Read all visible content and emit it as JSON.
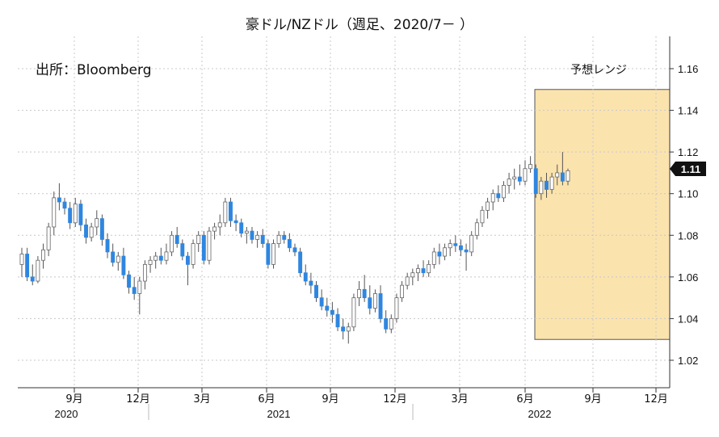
{
  "chart_data": {
    "type": "candlestick",
    "title": "豪ドル/NZドル（週足、2020/7－ ）",
    "source": "出所：Bloomberg",
    "forecast_label": "予想レンジ",
    "forecast_range": {
      "start": "2022-06",
      "end": "2022-12",
      "low": 1.03,
      "high": 1.15
    },
    "last_price_label": "1.11",
    "y_ticks": [
      "1.16",
      "1.14",
      "1.12",
      "1.10",
      "1.08",
      "1.06",
      "1.04",
      "1.02"
    ],
    "ylim": [
      1.005,
      1.18
    ],
    "x_month_labels": [
      "9月",
      "12月",
      "3月",
      "6月",
      "9月",
      "12月",
      "3月",
      "6月",
      "9月",
      "12月"
    ],
    "x_year_labels": [
      "2020",
      "2021",
      "2022"
    ],
    "grid": true,
    "colors": {
      "up": "#ffffff",
      "up_border": "#666666",
      "down": "#2f86e0",
      "down_border": "#2f86e0",
      "wick": "#555555",
      "forecast_fill": "#fbe3ad",
      "forecast_border": "#555555",
      "grid": "#c8c8c8"
    },
    "candles": [
      [
        1.066,
        1.074,
        1.06,
        1.071
      ],
      [
        1.071,
        1.074,
        1.058,
        1.06
      ],
      [
        1.06,
        1.066,
        1.056,
        1.058
      ],
      [
        1.058,
        1.07,
        1.057,
        1.068
      ],
      [
        1.068,
        1.076,
        1.064,
        1.073
      ],
      [
        1.073,
        1.086,
        1.07,
        1.084
      ],
      [
        1.084,
        1.101,
        1.08,
        1.098
      ],
      [
        1.098,
        1.105,
        1.092,
        1.096
      ],
      [
        1.096,
        1.098,
        1.09,
        1.093
      ],
      [
        1.093,
        1.096,
        1.083,
        1.086
      ],
      [
        1.086,
        1.098,
        1.084,
        1.095
      ],
      [
        1.095,
        1.097,
        1.082,
        1.085
      ],
      [
        1.085,
        1.088,
        1.076,
        1.079
      ],
      [
        1.079,
        1.086,
        1.077,
        1.084
      ],
      [
        1.084,
        1.092,
        1.08,
        1.088
      ],
      [
        1.088,
        1.09,
        1.075,
        1.078
      ],
      [
        1.078,
        1.081,
        1.069,
        1.072
      ],
      [
        1.072,
        1.076,
        1.065,
        1.067
      ],
      [
        1.067,
        1.072,
        1.063,
        1.07
      ],
      [
        1.07,
        1.074,
        1.059,
        1.061
      ],
      [
        1.061,
        1.063,
        1.052,
        1.055
      ],
      [
        1.055,
        1.06,
        1.049,
        1.052
      ],
      [
        1.052,
        1.06,
        1.042,
        1.058
      ],
      [
        1.058,
        1.068,
        1.054,
        1.066
      ],
      [
        1.066,
        1.07,
        1.062,
        1.068
      ],
      [
        1.068,
        1.072,
        1.064,
        1.07
      ],
      [
        1.07,
        1.074,
        1.066,
        1.068
      ],
      [
        1.068,
        1.076,
        1.066,
        1.072
      ],
      [
        1.072,
        1.082,
        1.07,
        1.08
      ],
      [
        1.08,
        1.084,
        1.074,
        1.076
      ],
      [
        1.076,
        1.078,
        1.068,
        1.07
      ],
      [
        1.07,
        1.072,
        1.056,
        1.066
      ],
      [
        1.066,
        1.078,
        1.064,
        1.076
      ],
      [
        1.076,
        1.082,
        1.072,
        1.08
      ],
      [
        1.08,
        1.082,
        1.066,
        1.068
      ],
      [
        1.068,
        1.084,
        1.066,
        1.082
      ],
      [
        1.082,
        1.086,
        1.078,
        1.084
      ],
      [
        1.084,
        1.09,
        1.08,
        1.086
      ],
      [
        1.086,
        1.098,
        1.084,
        1.096
      ],
      [
        1.096,
        1.098,
        1.084,
        1.087
      ],
      [
        1.087,
        1.09,
        1.082,
        1.086
      ],
      [
        1.086,
        1.088,
        1.079,
        1.081
      ],
      [
        1.081,
        1.084,
        1.076,
        1.082
      ],
      [
        1.082,
        1.084,
        1.076,
        1.078
      ],
      [
        1.078,
        1.082,
        1.074,
        1.08
      ],
      [
        1.08,
        1.083,
        1.074,
        1.076
      ],
      [
        1.076,
        1.078,
        1.064,
        1.066
      ],
      [
        1.066,
        1.078,
        1.064,
        1.076
      ],
      [
        1.076,
        1.082,
        1.074,
        1.08
      ],
      [
        1.08,
        1.082,
        1.076,
        1.078
      ],
      [
        1.078,
        1.081,
        1.072,
        1.074
      ],
      [
        1.074,
        1.076,
        1.07,
        1.072
      ],
      [
        1.072,
        1.074,
        1.06,
        1.062
      ],
      [
        1.062,
        1.066,
        1.056,
        1.058
      ],
      [
        1.058,
        1.062,
        1.052,
        1.056
      ],
      [
        1.056,
        1.058,
        1.048,
        1.05
      ],
      [
        1.05,
        1.054,
        1.044,
        1.046
      ],
      [
        1.046,
        1.05,
        1.041,
        1.044
      ],
      [
        1.044,
        1.048,
        1.038,
        1.042
      ],
      [
        1.042,
        1.045,
        1.034,
        1.036
      ],
      [
        1.036,
        1.04,
        1.03,
        1.034
      ],
      [
        1.034,
        1.038,
        1.028,
        1.036
      ],
      [
        1.036,
        1.052,
        1.034,
        1.05
      ],
      [
        1.05,
        1.058,
        1.046,
        1.054
      ],
      [
        1.054,
        1.061,
        1.048,
        1.05
      ],
      [
        1.05,
        1.056,
        1.042,
        1.045
      ],
      [
        1.045,
        1.054,
        1.043,
        1.052
      ],
      [
        1.052,
        1.056,
        1.038,
        1.04
      ],
      [
        1.04,
        1.044,
        1.033,
        1.035
      ],
      [
        1.035,
        1.042,
        1.033,
        1.04
      ],
      [
        1.04,
        1.052,
        1.038,
        1.05
      ],
      [
        1.05,
        1.058,
        1.048,
        1.056
      ],
      [
        1.056,
        1.062,
        1.054,
        1.06
      ],
      [
        1.06,
        1.064,
        1.056,
        1.062
      ],
      [
        1.062,
        1.066,
        1.058,
        1.064
      ],
      [
        1.064,
        1.068,
        1.06,
        1.062
      ],
      [
        1.062,
        1.068,
        1.06,
        1.066
      ],
      [
        1.066,
        1.074,
        1.064,
        1.072
      ],
      [
        1.072,
        1.076,
        1.066,
        1.07
      ],
      [
        1.07,
        1.076,
        1.068,
        1.074
      ],
      [
        1.074,
        1.078,
        1.07,
        1.076
      ],
      [
        1.076,
        1.08,
        1.072,
        1.075
      ],
      [
        1.075,
        1.078,
        1.07,
        1.073
      ],
      [
        1.073,
        1.076,
        1.063,
        1.072
      ],
      [
        1.072,
        1.082,
        1.07,
        1.08
      ],
      [
        1.08,
        1.088,
        1.078,
        1.086
      ],
      [
        1.086,
        1.094,
        1.084,
        1.092
      ],
      [
        1.092,
        1.098,
        1.088,
        1.096
      ],
      [
        1.096,
        1.102,
        1.092,
        1.1
      ],
      [
        1.1,
        1.104,
        1.096,
        1.098
      ],
      [
        1.098,
        1.106,
        1.096,
        1.104
      ],
      [
        1.104,
        1.11,
        1.1,
        1.107
      ],
      [
        1.107,
        1.112,
        1.102,
        1.108
      ],
      [
        1.108,
        1.114,
        1.104,
        1.106
      ],
      [
        1.106,
        1.116,
        1.104,
        1.112
      ],
      [
        1.112,
        1.118,
        1.11,
        1.114
      ],
      [
        1.112,
        1.114,
        1.098,
        1.1
      ],
      [
        1.1,
        1.108,
        1.097,
        1.106
      ],
      [
        1.106,
        1.11,
        1.098,
        1.102
      ],
      [
        1.102,
        1.11,
        1.1,
        1.108
      ],
      [
        1.108,
        1.114,
        1.104,
        1.11
      ],
      [
        1.11,
        1.12,
        1.104,
        1.106
      ],
      [
        1.106,
        1.112,
        1.104,
        1.111
      ]
    ]
  }
}
